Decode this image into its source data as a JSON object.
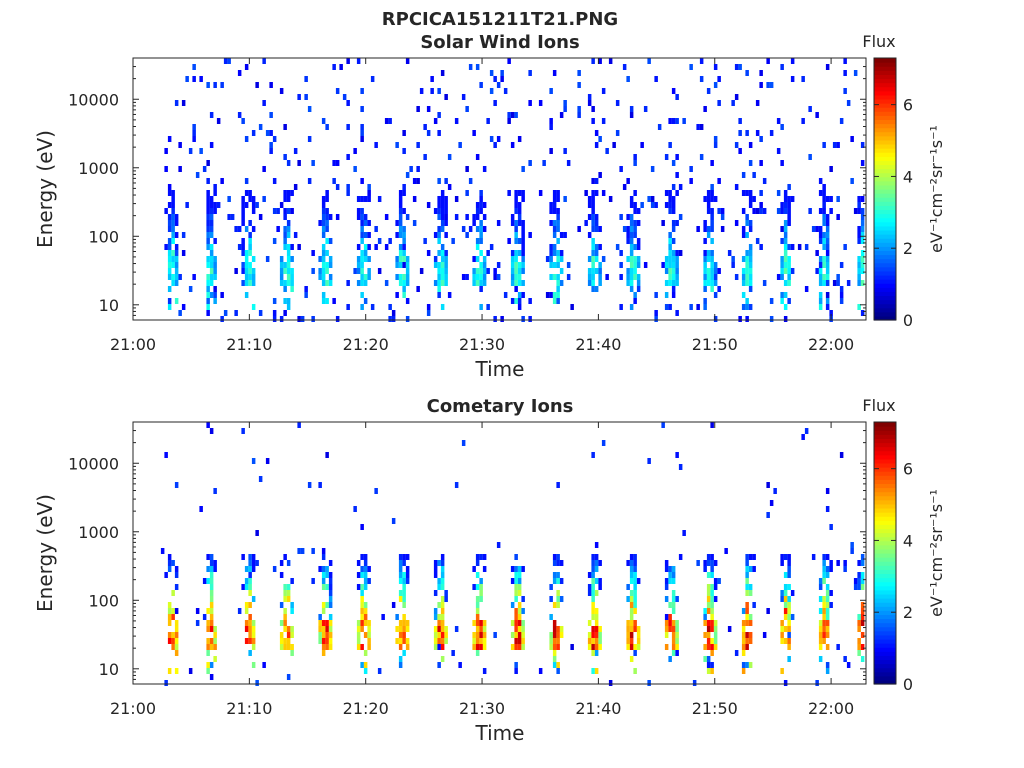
{
  "figure": {
    "title": "RPCICA151211T21.PNG"
  },
  "chart_data": [
    {
      "type": "heatmap",
      "title": "Solar Wind Ions",
      "xlabel": "Time",
      "ylabel": "Energy (eV)",
      "x_range": [
        "21:00",
        "22:03"
      ],
      "x_ticks": [
        "21:00",
        "21:10",
        "21:20",
        "21:30",
        "21:40",
        "21:50",
        "22:00"
      ],
      "y_scale": "log",
      "y_range": [
        6,
        40000
      ],
      "y_ticks": [
        10,
        100,
        1000,
        10000
      ],
      "y_tick_labels": [
        "10",
        "100",
        "1000",
        "10000"
      ],
      "colorbar": {
        "title": "Flux",
        "label": "eV⁻¹cm⁻²sr⁻¹s⁻¹",
        "range": [
          0,
          7.3
        ],
        "ticks": [
          0,
          2,
          4,
          6
        ],
        "tick_labels": [
          "0",
          "2",
          "4",
          "6"
        ],
        "colormap": "jet"
      },
      "pattern": {
        "start_minute": 2.4,
        "cycle_minutes": 3.3,
        "cycles": 19,
        "core_energy_ev": [
          20,
          50
        ],
        "core_flux": 3.0,
        "scatter_flux": 1.0,
        "note": "sparse low-flux background up to ~40 keV; periodic bursts 20-300 eV"
      }
    },
    {
      "type": "heatmap",
      "title": "Cometary Ions",
      "xlabel": "Time",
      "ylabel": "Energy (eV)",
      "x_range": [
        "21:00",
        "22:03"
      ],
      "x_ticks": [
        "21:00",
        "21:10",
        "21:20",
        "21:30",
        "21:40",
        "21:50",
        "22:00"
      ],
      "y_scale": "log",
      "y_range": [
        6,
        40000
      ],
      "y_ticks": [
        10,
        100,
        1000,
        10000
      ],
      "y_tick_labels": [
        "10",
        "100",
        "1000",
        "10000"
      ],
      "colorbar": {
        "title": "Flux",
        "label": "eV⁻¹cm⁻²sr⁻¹s⁻¹",
        "range": [
          0,
          7.3
        ],
        "ticks": [
          0,
          2,
          4,
          6
        ],
        "tick_labels": [
          "0",
          "2",
          "4",
          "6"
        ],
        "colormap": "jet"
      },
      "pattern": {
        "start_minute": 2.4,
        "cycle_minutes": 3.3,
        "cycles": 19,
        "core_energy_ev": [
          20,
          50
        ],
        "core_flux": 6.2,
        "scatter_flux": 1.0,
        "note": "strong periodic bursts 15-400 eV peaking ~30 eV, sparse background above"
      }
    }
  ]
}
